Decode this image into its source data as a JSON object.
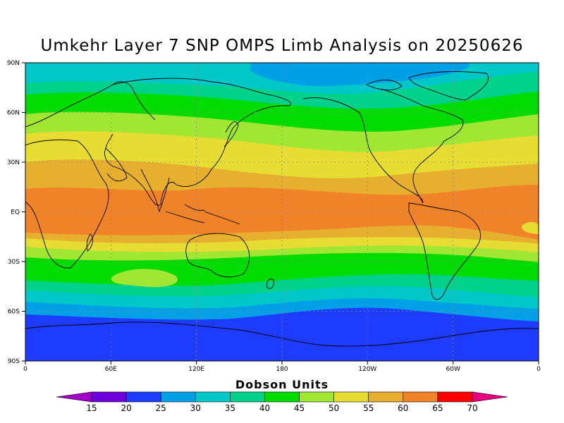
{
  "title": "Umkehr Layer 7 SNP OMPS Limb Analysis on 20250626",
  "chart_data": {
    "type": "heatmap",
    "title": "Umkehr Layer 7 SNP OMPS Limb Analysis on 20250626",
    "lat_ticks": [
      "90N",
      "60N",
      "30N",
      "EQ",
      "30S",
      "60S",
      "90S"
    ],
    "lon_ticks": [
      "0",
      "60E",
      "120E",
      "180",
      "120W",
      "60W",
      "0"
    ],
    "colorbar": {
      "title": "Dobson Units",
      "labels": [
        "15",
        "20",
        "25",
        "30",
        "35",
        "40",
        "45",
        "50",
        "55",
        "60",
        "65",
        "70"
      ],
      "colors": [
        "#a000c8",
        "#6e00dc",
        "#1e3cff",
        "#00a0e6",
        "#00c8c8",
        "#00d28c",
        "#00dc00",
        "#a0e632",
        "#e6dc32",
        "#e6af2d",
        "#f08228",
        "#fa0000",
        "#e6007d"
      ]
    }
  }
}
